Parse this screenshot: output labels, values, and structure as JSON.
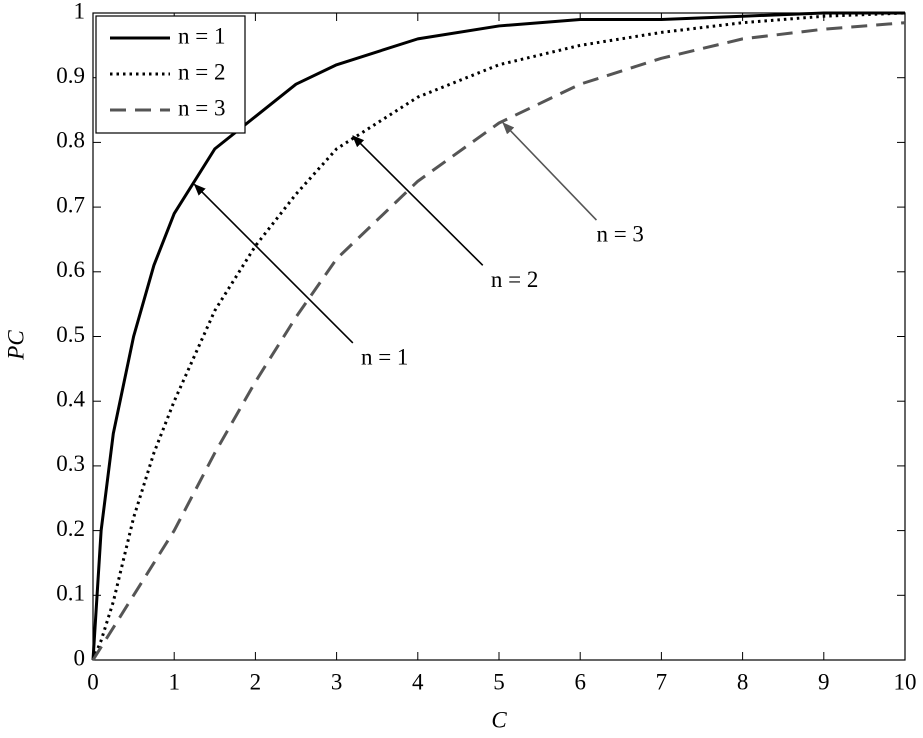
{
  "chart_data": {
    "type": "line",
    "xlabel": "C",
    "ylabel": "PC",
    "x": [
      0,
      0.1,
      0.25,
      0.5,
      0.75,
      1,
      1.5,
      2,
      2.5,
      3,
      4,
      5,
      6,
      7,
      8,
      9,
      10
    ],
    "series": [
      {
        "name": "n = 1",
        "color": "#000000",
        "linestyle": "solid",
        "values": [
          0,
          0.2,
          0.35,
          0.5,
          0.61,
          0.69,
          0.79,
          0.84,
          0.89,
          0.92,
          0.96,
          0.98,
          0.99,
          0.99,
          0.995,
          1,
          1
        ]
      },
      {
        "name": "n = 2",
        "color": "#000000",
        "linestyle": "dotted",
        "values": [
          0,
          0.03,
          0.09,
          0.22,
          0.32,
          0.4,
          0.54,
          0.64,
          0.72,
          0.79,
          0.87,
          0.92,
          0.95,
          0.97,
          0.985,
          0.995,
          1
        ]
      },
      {
        "name": "n = 3",
        "color": "#555555",
        "linestyle": "dashed",
        "values": [
          0,
          0.02,
          0.05,
          0.1,
          0.15,
          0.2,
          0.32,
          0.43,
          0.53,
          0.62,
          0.74,
          0.83,
          0.89,
          0.93,
          0.96,
          0.975,
          0.985
        ]
      }
    ],
    "annotations": [
      "n = 1",
      "n = 2",
      "n = 3"
    ],
    "xlim": [
      0,
      10
    ],
    "ylim": [
      0,
      1
    ],
    "xticks": [
      0,
      1,
      2,
      3,
      4,
      5,
      6,
      7,
      8,
      9,
      10
    ],
    "yticks": [
      0,
      0.1,
      0.2,
      0.3,
      0.4,
      0.5,
      0.6,
      0.7,
      0.8,
      0.9,
      1
    ],
    "grid": false,
    "legend": "upper left"
  }
}
